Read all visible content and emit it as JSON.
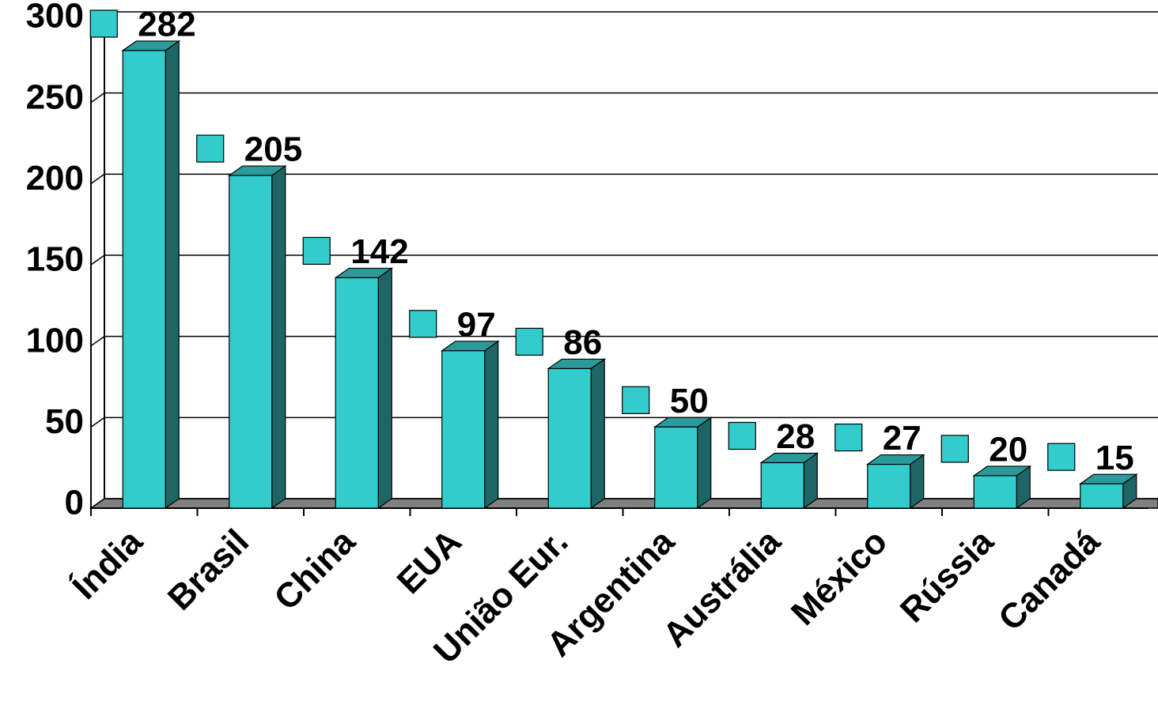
{
  "chart_data": {
    "type": "bar3d",
    "categories": [
      "Índia",
      "Brasil",
      "China",
      "EUA",
      "União Eur.",
      "Argentina",
      "Austrália",
      "México",
      "Rússia",
      "Canadá"
    ],
    "values": [
      282,
      205,
      142,
      97,
      86,
      50,
      28,
      27,
      20,
      15
    ],
    "color": "#33cccc",
    "category_label_colors": [
      "#000000",
      "#f5c400",
      "#000000",
      "#000000",
      "#000000",
      "#000000",
      "#000000",
      "#000000",
      "#000000",
      "#000000"
    ],
    "ylim": [
      0,
      300
    ],
    "yticks": [
      0,
      50,
      100,
      150,
      200,
      250,
      300
    ],
    "grid": true
  }
}
